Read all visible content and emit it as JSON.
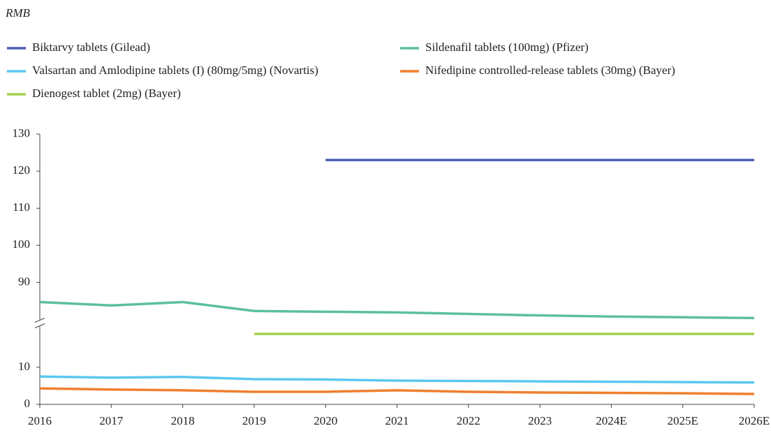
{
  "chart_data": {
    "type": "line",
    "ylabel": "RMB",
    "categories": [
      "2016",
      "2017",
      "2018",
      "2019",
      "2020",
      "2021",
      "2022",
      "2023",
      "2024E",
      "2025E",
      "2026E"
    ],
    "series": [
      {
        "name": "Biktarvy tablets (Gilead)",
        "color": "#4a5fb5",
        "values": [
          null,
          null,
          null,
          null,
          123,
          123,
          123,
          123,
          123,
          123,
          123
        ]
      },
      {
        "name": "Sildenafil tablets (100mg) (Pfizer)",
        "color": "#5cbf9f",
        "values": [
          84.7,
          83.8,
          84.7,
          82.3,
          82.1,
          81.9,
          81.5,
          81.1,
          80.8,
          80.6,
          80.4
        ]
      },
      {
        "name": "Valsartan and Amlodipine tablets (I) (80mg/5mg) (Novartis)",
        "color": "#5bc8ee",
        "values": [
          7.5,
          7.2,
          7.4,
          6.8,
          6.7,
          6.4,
          6.3,
          6.2,
          6.1,
          6.0,
          5.9
        ]
      },
      {
        "name": "Nifedipine controlled-release tablets (30mg) (Bayer)",
        "color": "#f07f2f",
        "values": [
          4.3,
          4.0,
          3.8,
          3.4,
          3.4,
          3.8,
          3.4,
          3.2,
          3.1,
          3.0,
          2.8
        ]
      },
      {
        "name": "Dienogest tablet (2mg) (Bayer)",
        "color": "#a5d14a",
        "values": [
          null,
          null,
          null,
          19,
          19,
          19,
          19,
          19,
          19,
          19,
          19
        ]
      }
    ],
    "ylim": [
      0,
      130
    ],
    "axis_break": [
      21,
      80
    ],
    "yticks": [
      0,
      10,
      90,
      100,
      110,
      120,
      130
    ],
    "grid": false
  }
}
